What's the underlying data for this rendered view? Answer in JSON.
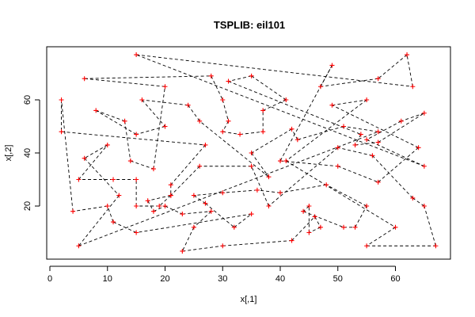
{
  "chart_data": {
    "type": "scatter",
    "title": "TSPLIB: eil101",
    "xlabel": "x[,1]",
    "ylabel": "x[,2]",
    "xlim": [
      0,
      70
    ],
    "ylim": [
      0,
      80
    ],
    "xticks": [
      0,
      10,
      20,
      30,
      40,
      50,
      60
    ],
    "yticks": [
      20,
      40,
      60
    ],
    "grid": false,
    "legend": "none",
    "point_marker": "plus",
    "colors": {
      "points": "#ff0000",
      "tour": "#000000",
      "box": "#000000"
    },
    "points": [
      [
        15,
        77
      ],
      [
        6,
        68
      ],
      [
        2,
        60
      ],
      [
        2,
        48
      ],
      [
        8,
        56
      ],
      [
        13,
        52
      ],
      [
        14,
        37
      ],
      [
        18,
        34
      ],
      [
        15,
        47
      ],
      [
        6,
        38
      ],
      [
        10,
        43
      ],
      [
        4,
        18
      ],
      [
        10,
        20
      ],
      [
        11,
        14
      ],
      [
        12,
        24
      ],
      [
        5,
        5
      ],
      [
        5,
        30
      ],
      [
        11,
        30
      ],
      [
        15,
        30
      ],
      [
        15,
        10
      ],
      [
        15,
        20
      ],
      [
        17,
        22
      ],
      [
        18,
        18
      ],
      [
        19,
        20
      ],
      [
        20,
        20
      ],
      [
        21,
        24
      ],
      [
        21,
        28
      ],
      [
        20,
        50
      ],
      [
        20,
        65
      ],
      [
        16,
        60
      ],
      [
        24,
        58
      ],
      [
        26,
        52
      ],
      [
        27,
        43
      ],
      [
        26,
        35
      ],
      [
        25,
        24
      ],
      [
        27,
        21
      ],
      [
        28,
        18
      ],
      [
        25,
        12
      ],
      [
        23,
        3
      ],
      [
        30,
        5
      ],
      [
        30,
        25
      ],
      [
        32,
        12
      ],
      [
        35,
        17
      ],
      [
        36,
        26
      ],
      [
        31,
        52
      ],
      [
        30,
        60
      ],
      [
        28,
        69
      ],
      [
        31,
        67
      ],
      [
        35,
        69
      ],
      [
        37,
        56
      ],
      [
        37,
        48
      ],
      [
        35,
        40
      ],
      [
        35,
        35
      ],
      [
        38,
        31
      ],
      [
        40,
        37
      ],
      [
        41,
        37
      ],
      [
        40,
        25
      ],
      [
        41,
        60
      ],
      [
        42,
        49
      ],
      [
        42,
        7
      ],
      [
        45,
        10
      ],
      [
        45,
        20
      ],
      [
        46,
        16
      ],
      [
        47,
        12
      ],
      [
        47,
        65
      ],
      [
        49,
        73
      ],
      [
        49,
        58
      ],
      [
        51,
        50
      ],
      [
        50,
        42
      ],
      [
        50,
        35
      ],
      [
        51,
        12
      ],
      [
        53,
        12
      ],
      [
        53,
        43
      ],
      [
        54,
        47
      ],
      [
        55,
        60
      ],
      [
        55,
        45
      ],
      [
        55,
        20
      ],
      [
        55,
        5
      ],
      [
        56,
        39
      ],
      [
        57,
        29
      ],
      [
        57,
        48
      ],
      [
        57,
        68
      ],
      [
        60,
        12
      ],
      [
        61,
        52
      ],
      [
        62,
        77
      ],
      [
        63,
        65
      ],
      [
        63,
        23
      ],
      [
        64,
        42
      ],
      [
        65,
        55
      ],
      [
        65,
        35
      ],
      [
        65,
        20
      ],
      [
        67,
        5
      ],
      [
        57,
        44
      ],
      [
        43,
        45
      ],
      [
        38,
        20
      ],
      [
        23,
        17
      ],
      [
        21,
        24
      ],
      [
        30,
        48
      ],
      [
        33,
        47
      ],
      [
        44,
        18
      ],
      [
        48,
        28
      ]
    ],
    "tour": [
      0,
      85,
      84,
      81,
      64,
      65,
      54,
      69,
      79,
      87,
      66,
      74,
      55,
      82,
      77,
      91,
      90,
      86,
      78,
      68,
      94,
      52,
      33,
      25,
      21,
      22,
      24,
      95,
      36,
      37,
      38,
      39,
      59,
      62,
      63,
      60,
      61,
      99,
      70,
      71,
      76,
      100,
      56,
      43,
      40,
      34,
      35,
      41,
      42,
      19,
      13,
      12,
      11,
      2,
      3,
      32,
      26,
      96,
      23,
      20,
      18,
      17,
      16,
      10,
      9,
      14,
      15,
      80,
      67,
      93,
      58,
      51,
      53,
      31,
      30,
      29,
      27,
      8,
      4,
      5,
      6,
      7,
      28,
      1,
      46,
      45,
      44,
      97,
      98,
      50,
      49,
      57,
      48,
      47,
      73,
      72,
      92,
      88,
      83,
      75,
      89,
      0
    ]
  }
}
